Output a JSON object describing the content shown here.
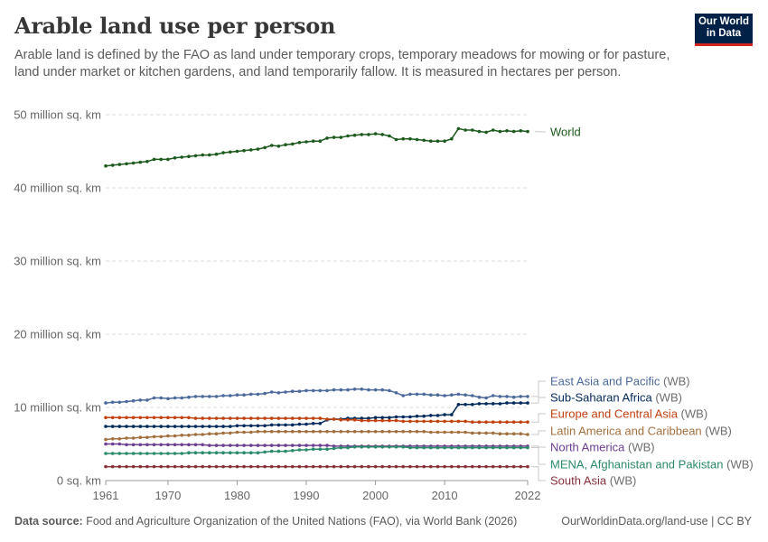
{
  "header": {
    "title": "Arable land use per person",
    "subtitle": "Arable land is defined by the FAO as land under temporary crops, temporary meadows for mowing or for pasture, land under market or kitchen gardens, and land temporarily fallow. It is measured in hectares per person.",
    "logo_line1": "Our World",
    "logo_line2": "in Data"
  },
  "footer": {
    "source_label": "Data source:",
    "source_text": " Food and Agriculture Organization of the United Nations (FAO), via World Bank (2026)",
    "url_license": "OurWorldinData.org/land-use | CC BY"
  },
  "colors": {
    "World": "#1d5a1d",
    "East Asia and Pacific": "#4c6a9c",
    "Sub-Saharan Africa": "#00295b",
    "Europe and Central Asia": "#c1410f",
    "Latin America and Caribbean": "#a2703f",
    "North America": "#6d3e91",
    "MENA, Afghanistan and Pakistan": "#2a8a6a",
    "South Asia": "#883039"
  },
  "chart_data": {
    "type": "line",
    "title": "Arable land use per person",
    "xlabel": "",
    "ylabel": "",
    "xlim": [
      1961,
      2022
    ],
    "ylim": [
      0,
      50
    ],
    "x_ticks": [
      "1961",
      "1970",
      "1980",
      "1990",
      "2000",
      "2010",
      "2022"
    ],
    "x_tick_values": [
      1961,
      1970,
      1980,
      1990,
      2000,
      2010,
      2022
    ],
    "y_ticks": [
      "0 sq. km",
      "10 million sq. km",
      "20 million sq. km",
      "30 million sq. km",
      "40 million sq. km",
      "50 million sq. km"
    ],
    "y_tick_values": [
      0,
      10,
      20,
      30,
      40,
      50
    ],
    "units": "million sq. km",
    "grid": true,
    "legend": "right-inline-labels",
    "x": [
      1961,
      1962,
      1963,
      1964,
      1965,
      1966,
      1967,
      1968,
      1969,
      1970,
      1971,
      1972,
      1973,
      1974,
      1975,
      1976,
      1977,
      1978,
      1979,
      1980,
      1981,
      1982,
      1983,
      1984,
      1985,
      1986,
      1987,
      1988,
      1989,
      1990,
      1991,
      1992,
      1993,
      1994,
      1995,
      1996,
      1997,
      1998,
      1999,
      2000,
      2001,
      2002,
      2003,
      2004,
      2005,
      2006,
      2007,
      2008,
      2009,
      2010,
      2011,
      2012,
      2013,
      2014,
      2015,
      2016,
      2017,
      2018,
      2019,
      2020,
      2021,
      2022
    ],
    "series": [
      {
        "name": "World",
        "suffix": "",
        "values": [
          43.0,
          43.1,
          43.2,
          43.3,
          43.4,
          43.5,
          43.6,
          43.9,
          43.9,
          43.9,
          44.1,
          44.2,
          44.3,
          44.4,
          44.5,
          44.5,
          44.6,
          44.8,
          44.9,
          45.0,
          45.1,
          45.2,
          45.3,
          45.5,
          45.8,
          45.7,
          45.9,
          46.0,
          46.2,
          46.3,
          46.4,
          46.4,
          46.8,
          46.9,
          46.9,
          47.1,
          47.2,
          47.3,
          47.3,
          47.4,
          47.3,
          47.1,
          46.6,
          46.7,
          46.7,
          46.6,
          46.5,
          46.4,
          46.4,
          46.4,
          46.7,
          48.1,
          47.9,
          47.9,
          47.7,
          47.6,
          47.9,
          47.7,
          47.8,
          47.7,
          47.8,
          47.7
        ]
      },
      {
        "name": "East Asia and Pacific",
        "suffix": " (WB)",
        "values": [
          10.6,
          10.7,
          10.7,
          10.8,
          10.9,
          11.0,
          11.0,
          11.3,
          11.3,
          11.2,
          11.3,
          11.3,
          11.4,
          11.5,
          11.5,
          11.5,
          11.5,
          11.6,
          11.6,
          11.7,
          11.7,
          11.8,
          11.8,
          11.9,
          12.1,
          12.0,
          12.1,
          12.2,
          12.2,
          12.3,
          12.3,
          12.3,
          12.3,
          12.4,
          12.4,
          12.4,
          12.5,
          12.5,
          12.4,
          12.4,
          12.4,
          12.3,
          12.0,
          11.6,
          11.8,
          11.8,
          11.8,
          11.7,
          11.7,
          11.6,
          11.7,
          11.8,
          11.7,
          11.6,
          11.4,
          11.3,
          11.6,
          11.5,
          11.5,
          11.4,
          11.5,
          11.5
        ]
      },
      {
        "name": "Sub-Saharan Africa",
        "suffix": " (WB)",
        "values": [
          7.4,
          7.4,
          7.4,
          7.4,
          7.4,
          7.4,
          7.4,
          7.4,
          7.4,
          7.4,
          7.4,
          7.4,
          7.4,
          7.4,
          7.4,
          7.4,
          7.4,
          7.4,
          7.4,
          7.5,
          7.5,
          7.5,
          7.5,
          7.5,
          7.6,
          7.6,
          7.6,
          7.6,
          7.7,
          7.7,
          7.8,
          7.8,
          8.3,
          8.4,
          8.4,
          8.5,
          8.5,
          8.5,
          8.5,
          8.6,
          8.6,
          8.6,
          8.7,
          8.7,
          8.7,
          8.8,
          8.8,
          8.9,
          8.9,
          9.0,
          9.0,
          10.4,
          10.4,
          10.4,
          10.5,
          10.5,
          10.5,
          10.5,
          10.6,
          10.6,
          10.6,
          10.6
        ]
      },
      {
        "name": "Europe and Central Asia",
        "suffix": " (WB)",
        "values": [
          8.6,
          8.6,
          8.6,
          8.6,
          8.6,
          8.6,
          8.6,
          8.6,
          8.6,
          8.6,
          8.6,
          8.6,
          8.6,
          8.5,
          8.5,
          8.5,
          8.5,
          8.5,
          8.5,
          8.5,
          8.5,
          8.5,
          8.5,
          8.5,
          8.5,
          8.5,
          8.5,
          8.5,
          8.5,
          8.5,
          8.5,
          8.5,
          8.4,
          8.4,
          8.3,
          8.3,
          8.3,
          8.2,
          8.2,
          8.2,
          8.2,
          8.2,
          8.2,
          8.1,
          8.1,
          8.1,
          8.1,
          8.1,
          8.1,
          8.1,
          8.1,
          8.1,
          8.1,
          8.0,
          8.0,
          8.0,
          8.0,
          8.0,
          8.0,
          8.0,
          8.0,
          8.0
        ]
      },
      {
        "name": "Latin America and Caribbean",
        "suffix": " (WB)",
        "values": [
          5.6,
          5.7,
          5.7,
          5.8,
          5.8,
          5.9,
          5.9,
          6.0,
          6.0,
          6.1,
          6.1,
          6.2,
          6.2,
          6.3,
          6.3,
          6.4,
          6.4,
          6.5,
          6.5,
          6.6,
          6.6,
          6.6,
          6.7,
          6.7,
          6.7,
          6.7,
          6.7,
          6.7,
          6.7,
          6.7,
          6.7,
          6.7,
          6.7,
          6.7,
          6.7,
          6.7,
          6.7,
          6.7,
          6.7,
          6.7,
          6.7,
          6.7,
          6.7,
          6.7,
          6.7,
          6.7,
          6.7,
          6.6,
          6.6,
          6.6,
          6.6,
          6.6,
          6.6,
          6.5,
          6.5,
          6.5,
          6.5,
          6.4,
          6.4,
          6.4,
          6.4,
          6.3
        ]
      },
      {
        "name": "North America",
        "suffix": " (WB)",
        "values": [
          5.0,
          5.0,
          5.0,
          4.9,
          4.9,
          4.9,
          4.9,
          4.9,
          4.9,
          4.9,
          4.9,
          4.9,
          4.9,
          4.9,
          4.9,
          4.8,
          4.8,
          4.8,
          4.8,
          4.8,
          4.8,
          4.8,
          4.8,
          4.8,
          4.8,
          4.8,
          4.8,
          4.8,
          4.8,
          4.8,
          4.8,
          4.8,
          4.8,
          4.7,
          4.7,
          4.7,
          4.7,
          4.7,
          4.7,
          4.7,
          4.7,
          4.7,
          4.7,
          4.7,
          4.7,
          4.7,
          4.7,
          4.7,
          4.7,
          4.7,
          4.7,
          4.7,
          4.7,
          4.7,
          4.7,
          4.7,
          4.7,
          4.7,
          4.7,
          4.7,
          4.7,
          4.7
        ]
      },
      {
        "name": "MENA, Afghanistan and Pakistan",
        "suffix": " (WB)",
        "values": [
          3.7,
          3.7,
          3.7,
          3.7,
          3.7,
          3.7,
          3.7,
          3.7,
          3.7,
          3.7,
          3.7,
          3.7,
          3.8,
          3.8,
          3.8,
          3.8,
          3.8,
          3.8,
          3.8,
          3.8,
          3.8,
          3.8,
          3.8,
          3.9,
          4.0,
          4.0,
          4.0,
          4.1,
          4.2,
          4.2,
          4.3,
          4.3,
          4.3,
          4.4,
          4.5,
          4.5,
          4.6,
          4.6,
          4.6,
          4.6,
          4.6,
          4.6,
          4.6,
          4.6,
          4.5,
          4.5,
          4.5,
          4.5,
          4.5,
          4.5,
          4.5,
          4.5,
          4.5,
          4.5,
          4.5,
          4.5,
          4.5,
          4.5,
          4.5,
          4.5,
          4.5,
          4.5
        ]
      },
      {
        "name": "South Asia",
        "suffix": " (WB)",
        "values": [
          1.9,
          1.9,
          1.9,
          1.9,
          1.9,
          1.9,
          1.9,
          1.9,
          1.9,
          1.9,
          1.9,
          1.9,
          1.9,
          1.9,
          1.9,
          1.9,
          1.9,
          1.9,
          1.9,
          1.9,
          1.9,
          1.9,
          1.9,
          1.9,
          1.9,
          1.9,
          1.9,
          1.9,
          1.9,
          1.9,
          1.9,
          1.9,
          1.9,
          1.9,
          1.9,
          1.9,
          1.9,
          1.9,
          1.9,
          1.9,
          1.9,
          1.9,
          1.9,
          1.9,
          1.9,
          1.9,
          1.9,
          1.9,
          1.9,
          1.9,
          1.9,
          1.9,
          1.9,
          1.9,
          1.9,
          1.9,
          1.9,
          1.9,
          1.9,
          1.9,
          1.9,
          1.9
        ]
      }
    ]
  }
}
